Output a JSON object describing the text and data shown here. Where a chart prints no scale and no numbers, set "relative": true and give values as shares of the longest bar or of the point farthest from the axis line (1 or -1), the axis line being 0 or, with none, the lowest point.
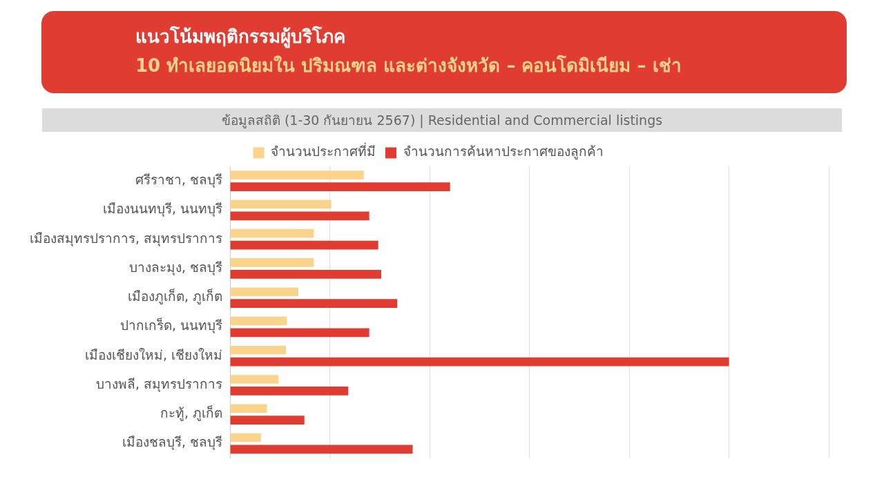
{
  "chart_data": {
    "type": "bar",
    "orientation": "horizontal",
    "relative": true,
    "title": "แนวโน้มพฤติกรรมผู้บริโภค",
    "subtitle": "10 ทำเลยอดนิยมใน ปริมณฑล และต่างจังหวัด – คอนโดมิเนียม – เช่า",
    "annotations": [
      "ข้อมูลสถิติ (1-30 กันยายน 2567) | Residential and Commercial listings"
    ],
    "categories": [
      "ศรีราชา, ชลบุรี",
      "เมืองนนทบุรี, นนทบุรี",
      "เมืองสมุทรปราการ, สมุทรปราการ",
      "บางละมุง, ชลบุรี",
      "เมืองภูเก็ต, ภูเก็ต",
      "ปากเกร็ด, นนทบุรี",
      "เมืองเชียงใหม่, เชียงใหม่",
      "บางพลี, สมุทรปราการ",
      "กะทู้, ภูเก็ต",
      "เมืองชลบุรี, ชลบุรี"
    ],
    "series": [
      {
        "name": "จำนวนประกาศที่มี",
        "color": "#fad48c",
        "values": [
          0.268,
          0.203,
          0.168,
          0.168,
          0.137,
          0.114,
          0.112,
          0.097,
          0.074,
          0.062
        ]
      },
      {
        "name": "จำนวนการค้นหาประกาศของลูกค้า",
        "color": "#e03c31",
        "values": [
          0.441,
          0.279,
          0.297,
          0.303,
          0.335,
          0.279,
          1,
          0.237,
          0.149,
          0.366
        ]
      }
    ],
    "legend": "top",
    "grid": "x"
  }
}
